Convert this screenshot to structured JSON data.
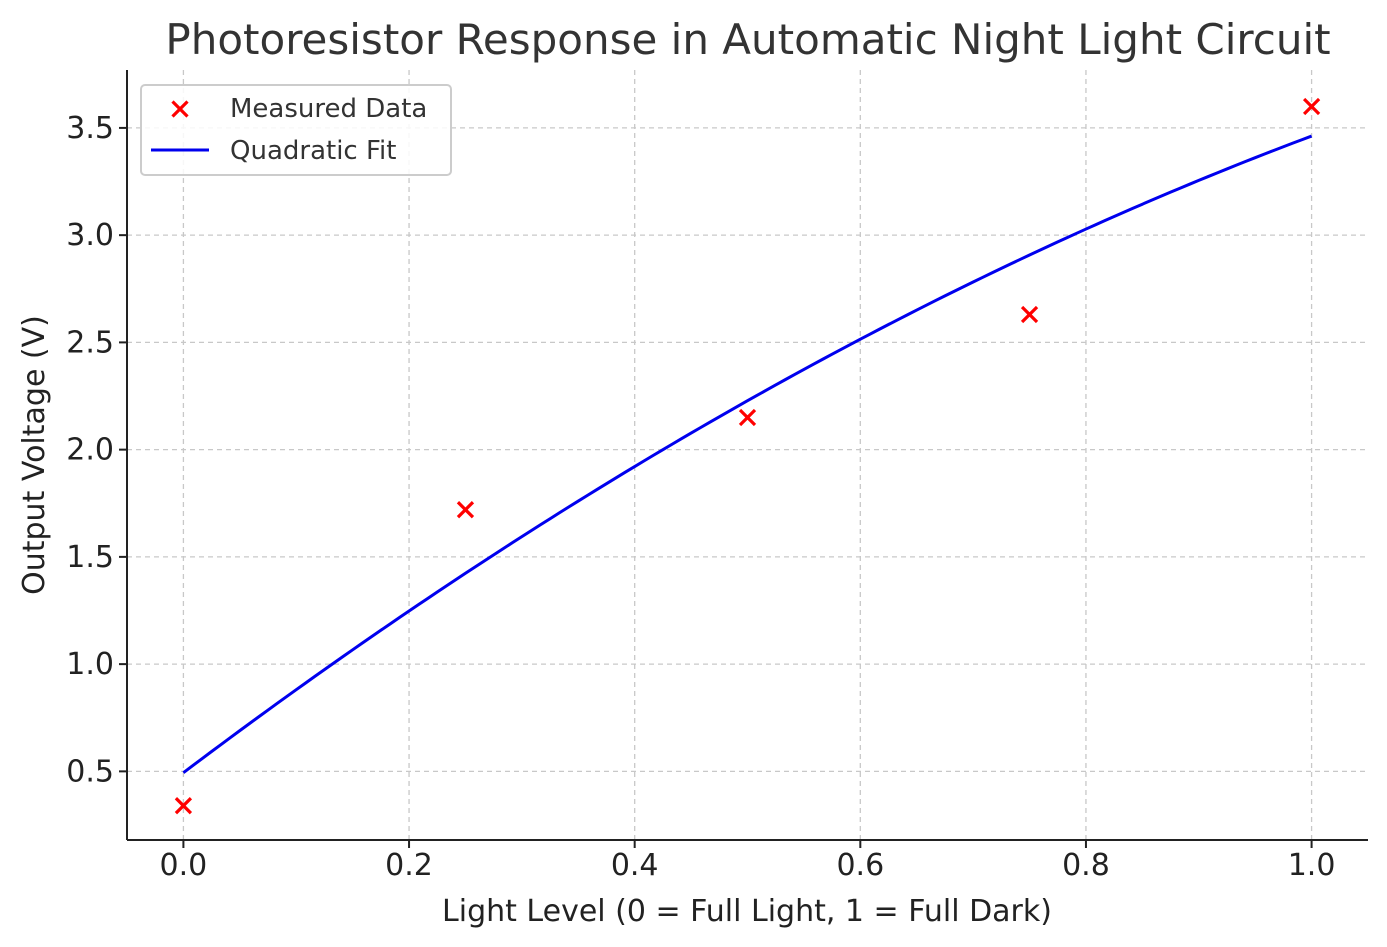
{
  "chart_data": {
    "type": "scatter",
    "title": "Photoresistor Response in Automatic Night Light Circuit",
    "xlabel": "Light Level (0 = Full Light, 1 = Full Dark)",
    "ylabel": "Output Voltage (V)",
    "xlim": [
      -0.05,
      1.05
    ],
    "ylim": [
      0.18,
      3.77
    ],
    "x_ticks": [
      0.0,
      0.2,
      0.4,
      0.6,
      0.8,
      1.0
    ],
    "x_tick_labels": [
      "0.0",
      "0.2",
      "0.4",
      "0.6",
      "0.8",
      "1.0"
    ],
    "y_ticks": [
      0.5,
      1.0,
      1.5,
      2.0,
      2.5,
      3.0,
      3.5
    ],
    "y_tick_labels": [
      "0.5",
      "1.0",
      "1.5",
      "2.0",
      "2.5",
      "3.0",
      "3.5"
    ],
    "grid": true,
    "legend_position": "top-left",
    "series": [
      {
        "name": "Measured Data",
        "kind": "scatter",
        "marker": "x",
        "color": "#ff0000",
        "x": [
          0.0,
          0.25,
          0.5,
          0.75,
          1.0
        ],
        "y": [
          0.34,
          1.72,
          2.15,
          2.63,
          3.6
        ]
      },
      {
        "name": "Quadratic Fit",
        "kind": "line",
        "color": "#0000ee",
        "coefficients": {
          "a": -1.0,
          "b": 3.968,
          "c": 0.494
        },
        "x_range": [
          0.0,
          1.0
        ]
      }
    ]
  }
}
